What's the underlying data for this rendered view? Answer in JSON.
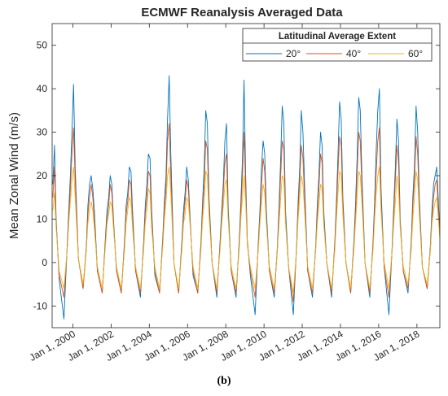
{
  "caption": "(b)",
  "chart_data": {
    "type": "line",
    "title": "ECMWF Reanalysis Averaged Data",
    "xlabel": "",
    "ylabel": "Mean Zonal Wind (m/s)",
    "ylim": [
      -15,
      55
    ],
    "xlim": [
      "1998-12-01",
      "2019-03-15"
    ],
    "yticks": [
      -10,
      0,
      10,
      20,
      30,
      40,
      50
    ],
    "xticks": [
      "2000-01-01",
      "2002-01-01",
      "2004-01-01",
      "2006-01-01",
      "2008-01-01",
      "2010-01-01",
      "2012-01-01",
      "2014-01-01",
      "2016-01-01",
      "2018-01-01"
    ],
    "xtick_labels": [
      "Jan 1, 2000",
      "Jan 1, 2002",
      "Jan 1, 2004",
      "Jan 1, 2006",
      "Jan 1, 2008",
      "Jan 1, 2010",
      "Jan 1, 2012",
      "Jan 1, 2014",
      "Jan 1, 2016",
      "Jan 1, 2018"
    ],
    "grid": false,
    "legend": {
      "title": "Latitudinal Average Extent",
      "placement": "top-right",
      "orientation": "horizontal"
    },
    "series": [
      {
        "name": "20°",
        "color": "#0072BD",
        "x": [
          "1998-12-15",
          "1999-01-15",
          "1999-02-15",
          "1999-04-15",
          "1999-07-15",
          "1999-09-15",
          "1999-10-15",
          "1999-11-15",
          "1999-12-15",
          "2000-01-15",
          "2000-02-15",
          "2000-04-15",
          "2000-07-15",
          "2000-09-15",
          "2000-10-15",
          "2000-11-15",
          "2000-12-15",
          "2001-01-15",
          "2001-02-15",
          "2001-04-15",
          "2001-07-15",
          "2001-09-15",
          "2001-10-15",
          "2001-11-15",
          "2001-12-15",
          "2002-01-15",
          "2002-02-15",
          "2002-04-15",
          "2002-07-15",
          "2002-09-15",
          "2002-10-15",
          "2002-11-15",
          "2002-12-15",
          "2003-01-15",
          "2003-02-15",
          "2003-04-15",
          "2003-07-15",
          "2003-09-15",
          "2003-10-15",
          "2003-11-15",
          "2003-12-15",
          "2004-01-15",
          "2004-02-15",
          "2004-04-15",
          "2004-07-15",
          "2004-09-15",
          "2004-10-15",
          "2004-11-15",
          "2004-12-15",
          "2005-01-15",
          "2005-02-15",
          "2005-04-15",
          "2005-07-15",
          "2005-09-15",
          "2005-10-15",
          "2005-11-15",
          "2005-12-15",
          "2006-01-15",
          "2006-02-15",
          "2006-04-15",
          "2006-07-15",
          "2006-09-15",
          "2006-10-15",
          "2006-11-15",
          "2006-12-15",
          "2007-01-15",
          "2007-02-15",
          "2007-04-15",
          "2007-07-15",
          "2007-09-15",
          "2007-10-15",
          "2007-11-15",
          "2007-12-15",
          "2008-01-15",
          "2008-02-15",
          "2008-04-15",
          "2008-07-15",
          "2008-09-15",
          "2008-10-15",
          "2008-11-15",
          "2008-12-15",
          "2009-01-15",
          "2009-02-15",
          "2009-04-15",
          "2009-07-15",
          "2009-09-15",
          "2009-10-15",
          "2009-11-15",
          "2009-12-15",
          "2010-01-15",
          "2010-02-15",
          "2010-04-15",
          "2010-07-15",
          "2010-09-15",
          "2010-10-15",
          "2010-11-15",
          "2010-12-15",
          "2011-01-15",
          "2011-02-15",
          "2011-04-15",
          "2011-07-15",
          "2011-09-15",
          "2011-10-15",
          "2011-11-15",
          "2011-12-15",
          "2012-01-15",
          "2012-02-15",
          "2012-04-15",
          "2012-07-15",
          "2012-09-15",
          "2012-10-15",
          "2012-11-15",
          "2012-12-15",
          "2013-01-15",
          "2013-02-15",
          "2013-04-15",
          "2013-07-15",
          "2013-09-15",
          "2013-10-15",
          "2013-11-15",
          "2013-12-15",
          "2014-01-15",
          "2014-02-15",
          "2014-04-15",
          "2014-07-15",
          "2014-09-15",
          "2014-10-15",
          "2014-11-15",
          "2014-12-15",
          "2015-01-15",
          "2015-02-15",
          "2015-04-15",
          "2015-07-15",
          "2015-09-15",
          "2015-10-15",
          "2015-11-15",
          "2015-12-15",
          "2016-01-15",
          "2016-02-15",
          "2016-04-15",
          "2016-07-15",
          "2016-09-15",
          "2016-10-15",
          "2016-11-15",
          "2016-12-15",
          "2017-01-15",
          "2017-02-15",
          "2017-04-15",
          "2017-07-15",
          "2017-09-15",
          "2017-10-15",
          "2017-11-15",
          "2017-12-15",
          "2018-01-15",
          "2018-02-15",
          "2018-04-15",
          "2018-07-15",
          "2018-09-15",
          "2018-10-15",
          "2018-11-15",
          "2018-12-15",
          "2019-01-15",
          "2019-02-15",
          "2019-03-10"
        ],
        "y": [
          18,
          27,
          10,
          -4,
          -13,
          4,
          12,
          20,
          30,
          41,
          22,
          1,
          -6,
          4,
          13,
          18,
          20,
          17,
          12,
          -2,
          -7,
          6,
          12,
          15,
          20,
          18,
          10,
          -2,
          -7,
          5,
          13,
          16,
          22,
          21,
          12,
          -2,
          -8,
          5,
          13,
          18,
          25,
          24,
          12,
          -3,
          -7,
          6,
          14,
          20,
          33,
          43,
          25,
          0,
          -7,
          5,
          12,
          16,
          22,
          19,
          11,
          -3,
          -7,
          5,
          14,
          22,
          35,
          32,
          15,
          0,
          -8,
          5,
          12,
          18,
          28,
          32,
          13,
          -2,
          -8,
          5,
          14,
          24,
          42,
          20,
          5,
          -3,
          -12,
          5,
          12,
          22,
          28,
          25,
          12,
          -2,
          -8,
          4,
          13,
          24,
          36,
          32,
          12,
          -1,
          -12,
          4,
          14,
          22,
          35,
          30,
          18,
          -2,
          -8,
          4,
          13,
          20,
          30,
          27,
          12,
          0,
          -8,
          5,
          14,
          25,
          37,
          33,
          15,
          0,
          -7,
          5,
          13,
          24,
          38,
          35,
          20,
          0,
          -8,
          5,
          14,
          26,
          35,
          40,
          17,
          -1,
          -12,
          4,
          13,
          22,
          33,
          28,
          10,
          -2,
          -7,
          5,
          15,
          22,
          36,
          30,
          15,
          -1,
          -6,
          4,
          12,
          18,
          20,
          22,
          14,
          8
        ]
      },
      {
        "name": "40°",
        "color": "#D95319",
        "x": [
          "1998-12-15",
          "1999-01-15",
          "1999-02-15",
          "1999-04-15",
          "1999-07-15",
          "1999-09-15",
          "1999-10-15",
          "1999-11-15",
          "1999-12-15",
          "2000-01-15",
          "2000-02-15",
          "2000-04-15",
          "2000-07-15",
          "2000-09-15",
          "2000-10-15",
          "2000-11-15",
          "2000-12-15",
          "2001-01-15",
          "2001-02-15",
          "2001-04-15",
          "2001-07-15",
          "2001-09-15",
          "2001-10-15",
          "2001-11-15",
          "2001-12-15",
          "2002-01-15",
          "2002-02-15",
          "2002-04-15",
          "2002-07-15",
          "2002-09-15",
          "2002-10-15",
          "2002-11-15",
          "2002-12-15",
          "2003-01-15",
          "2003-02-15",
          "2003-04-15",
          "2003-07-15",
          "2003-09-15",
          "2003-10-15",
          "2003-11-15",
          "2003-12-15",
          "2004-01-15",
          "2004-02-15",
          "2004-04-15",
          "2004-07-15",
          "2004-09-15",
          "2004-10-15",
          "2004-11-15",
          "2004-12-15",
          "2005-01-15",
          "2005-02-15",
          "2005-04-15",
          "2005-07-15",
          "2005-09-15",
          "2005-10-15",
          "2005-11-15",
          "2005-12-15",
          "2006-01-15",
          "2006-02-15",
          "2006-04-15",
          "2006-07-15",
          "2006-09-15",
          "2006-10-15",
          "2006-11-15",
          "2006-12-15",
          "2007-01-15",
          "2007-02-15",
          "2007-04-15",
          "2007-07-15",
          "2007-09-15",
          "2007-10-15",
          "2007-11-15",
          "2007-12-15",
          "2008-01-15",
          "2008-02-15",
          "2008-04-15",
          "2008-07-15",
          "2008-09-15",
          "2008-10-15",
          "2008-11-15",
          "2008-12-15",
          "2009-01-15",
          "2009-02-15",
          "2009-04-15",
          "2009-07-15",
          "2009-09-15",
          "2009-10-15",
          "2009-11-15",
          "2009-12-15",
          "2010-01-15",
          "2010-02-15",
          "2010-04-15",
          "2010-07-15",
          "2010-09-15",
          "2010-10-15",
          "2010-11-15",
          "2010-12-15",
          "2011-01-15",
          "2011-02-15",
          "2011-04-15",
          "2011-07-15",
          "2011-09-15",
          "2011-10-15",
          "2011-11-15",
          "2011-12-15",
          "2012-01-15",
          "2012-02-15",
          "2012-04-15",
          "2012-07-15",
          "2012-09-15",
          "2012-10-15",
          "2012-11-15",
          "2012-12-15",
          "2013-01-15",
          "2013-02-15",
          "2013-04-15",
          "2013-07-15",
          "2013-09-15",
          "2013-10-15",
          "2013-11-15",
          "2013-12-15",
          "2014-01-15",
          "2014-02-15",
          "2014-04-15",
          "2014-07-15",
          "2014-09-15",
          "2014-10-15",
          "2014-11-15",
          "2014-12-15",
          "2015-01-15",
          "2015-02-15",
          "2015-04-15",
          "2015-07-15",
          "2015-09-15",
          "2015-10-15",
          "2015-11-15",
          "2015-12-15",
          "2016-01-15",
          "2016-02-15",
          "2016-04-15",
          "2016-07-15",
          "2016-09-15",
          "2016-10-15",
          "2016-11-15",
          "2016-12-15",
          "2017-01-15",
          "2017-02-15",
          "2017-04-15",
          "2017-07-15",
          "2017-09-15",
          "2017-10-15",
          "2017-11-15",
          "2017-12-15",
          "2018-01-15",
          "2018-02-15",
          "2018-04-15",
          "2018-07-15",
          "2018-09-15",
          "2018-10-15",
          "2018-11-15",
          "2018-12-15",
          "2019-01-15",
          "2019-02-15",
          "2019-03-10"
        ],
        "y": [
          15,
          22,
          9,
          -3,
          -8,
          3,
          10,
          17,
          25,
          31,
          19,
          1,
          -6,
          3,
          11,
          15,
          18,
          15,
          10,
          -2,
          -7,
          5,
          10,
          13,
          18,
          16,
          9,
          -2,
          -7,
          4,
          11,
          14,
          19,
          18,
          10,
          -2,
          -7,
          4,
          11,
          15,
          21,
          20,
          10,
          -2,
          -7,
          5,
          12,
          17,
          28,
          32,
          20,
          0,
          -7,
          4,
          10,
          14,
          19,
          17,
          10,
          -2,
          -7,
          4,
          12,
          18,
          28,
          26,
          13,
          0,
          -7,
          4,
          10,
          16,
          23,
          25,
          11,
          -2,
          -7,
          4,
          12,
          20,
          30,
          17,
          5,
          -2,
          -8,
          4,
          10,
          18,
          24,
          21,
          10,
          -2,
          -7,
          3,
          11,
          20,
          28,
          26,
          10,
          -1,
          -9,
          3,
          12,
          19,
          27,
          24,
          15,
          -2,
          -7,
          3,
          11,
          17,
          25,
          23,
          10,
          0,
          -7,
          4,
          12,
          21,
          29,
          27,
          13,
          0,
          -7,
          4,
          11,
          20,
          30,
          28,
          17,
          0,
          -7,
          4,
          12,
          21,
          28,
          31,
          14,
          -1,
          -8,
          3,
          11,
          19,
          27,
          23,
          9,
          -2,
          -6,
          4,
          13,
          19,
          29,
          25,
          13,
          -1,
          -6,
          3,
          10,
          15,
          18,
          19,
          12,
          7
        ]
      },
      {
        "name": "60°",
        "color": "#EDB120",
        "x": [
          "1998-12-15",
          "1999-01-15",
          "1999-02-15",
          "1999-04-15",
          "1999-07-15",
          "1999-09-15",
          "1999-10-15",
          "1999-11-15",
          "1999-12-15",
          "2000-01-15",
          "2000-02-15",
          "2000-04-15",
          "2000-07-15",
          "2000-09-15",
          "2000-10-15",
          "2000-11-15",
          "2000-12-15",
          "2001-01-15",
          "2001-02-15",
          "2001-04-15",
          "2001-07-15",
          "2001-09-15",
          "2001-10-15",
          "2001-11-15",
          "2001-12-15",
          "2002-01-15",
          "2002-02-15",
          "2002-04-15",
          "2002-07-15",
          "2002-09-15",
          "2002-10-15",
          "2002-11-15",
          "2002-12-15",
          "2003-01-15",
          "2003-02-15",
          "2003-04-15",
          "2003-07-15",
          "2003-09-15",
          "2003-10-15",
          "2003-11-15",
          "2003-12-15",
          "2004-01-15",
          "2004-02-15",
          "2004-04-15",
          "2004-07-15",
          "2004-09-15",
          "2004-10-15",
          "2004-11-15",
          "2004-12-15",
          "2005-01-15",
          "2005-02-15",
          "2005-04-15",
          "2005-07-15",
          "2005-09-15",
          "2005-10-15",
          "2005-11-15",
          "2005-12-15",
          "2006-01-15",
          "2006-02-15",
          "2006-04-15",
          "2006-07-15",
          "2006-09-15",
          "2006-10-15",
          "2006-11-15",
          "2006-12-15",
          "2007-01-15",
          "2007-02-15",
          "2007-04-15",
          "2007-07-15",
          "2007-09-15",
          "2007-10-15",
          "2007-11-15",
          "2007-12-15",
          "2008-01-15",
          "2008-02-15",
          "2008-04-15",
          "2008-07-15",
          "2008-09-15",
          "2008-10-15",
          "2008-11-15",
          "2008-12-15",
          "2009-01-15",
          "2009-02-15",
          "2009-04-15",
          "2009-07-15",
          "2009-09-15",
          "2009-10-15",
          "2009-11-15",
          "2009-12-15",
          "2010-01-15",
          "2010-02-15",
          "2010-04-15",
          "2010-07-15",
          "2010-09-15",
          "2010-10-15",
          "2010-11-15",
          "2010-12-15",
          "2011-01-15",
          "2011-02-15",
          "2011-04-15",
          "2011-07-15",
          "2011-09-15",
          "2011-10-15",
          "2011-11-15",
          "2011-12-15",
          "2012-01-15",
          "2012-02-15",
          "2012-04-15",
          "2012-07-15",
          "2012-09-15",
          "2012-10-15",
          "2012-11-15",
          "2012-12-15",
          "2013-01-15",
          "2013-02-15",
          "2013-04-15",
          "2013-07-15",
          "2013-09-15",
          "2013-10-15",
          "2013-11-15",
          "2013-12-15",
          "2014-01-15",
          "2014-02-15",
          "2014-04-15",
          "2014-07-15",
          "2014-09-15",
          "2014-10-15",
          "2014-11-15",
          "2014-12-15",
          "2015-01-15",
          "2015-02-15",
          "2015-04-15",
          "2015-07-15",
          "2015-09-15",
          "2015-10-15",
          "2015-11-15",
          "2015-12-15",
          "2016-01-15",
          "2016-02-15",
          "2016-04-15",
          "2016-07-15",
          "2016-09-15",
          "2016-10-15",
          "2016-11-15",
          "2016-12-15",
          "2017-01-15",
          "2017-02-15",
          "2017-04-15",
          "2017-07-15",
          "2017-09-15",
          "2017-10-15",
          "2017-11-15",
          "2017-12-15",
          "2018-01-15",
          "2018-02-15",
          "2018-04-15",
          "2018-07-15",
          "2018-09-15",
          "2018-10-15",
          "2018-11-15",
          "2018-12-15",
          "2019-01-15",
          "2019-02-15",
          "2019-03-10"
        ],
        "y": [
          12,
          16,
          8,
          -2,
          -6,
          3,
          9,
          14,
          19,
          22,
          15,
          1,
          -5,
          3,
          9,
          12,
          14,
          12,
          8,
          -1,
          -6,
          4,
          9,
          11,
          14,
          13,
          8,
          -1,
          -6,
          3,
          9,
          12,
          15,
          14,
          8,
          -1,
          -6,
          3,
          9,
          12,
          17,
          16,
          8,
          -1,
          -6,
          4,
          10,
          14,
          20,
          22,
          16,
          0,
          -6,
          3,
          9,
          11,
          15,
          14,
          9,
          -1,
          -6,
          3,
          10,
          14,
          21,
          20,
          11,
          0,
          -6,
          3,
          9,
          13,
          18,
          19,
          10,
          -1,
          -6,
          3,
          10,
          15,
          20,
          14,
          4,
          -1,
          -6,
          3,
          9,
          14,
          18,
          16,
          9,
          -1,
          -6,
          3,
          9,
          15,
          20,
          19,
          9,
          -1,
          -7,
          3,
          10,
          15,
          20,
          18,
          12,
          -1,
          -6,
          3,
          9,
          13,
          18,
          17,
          9,
          0,
          -6,
          3,
          10,
          16,
          21,
          20,
          11,
          0,
          -6,
          3,
          9,
          15,
          21,
          20,
          14,
          0,
          -6,
          3,
          10,
          16,
          20,
          22,
          12,
          0,
          -6,
          3,
          9,
          14,
          20,
          17,
          8,
          -1,
          -5,
          3,
          10,
          15,
          21,
          19,
          11,
          -1,
          -5,
          3,
          9,
          12,
          14,
          15,
          10,
          6
        ]
      }
    ]
  }
}
